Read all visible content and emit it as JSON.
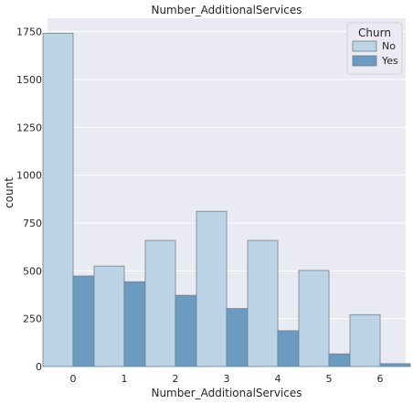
{
  "chart_data": {
    "type": "bar",
    "title": "Number_AdditionalServices",
    "xlabel": "Number_AdditionalServices",
    "ylabel": "count",
    "categories": [
      "0",
      "1",
      "2",
      "3",
      "4",
      "5",
      "6"
    ],
    "ylim": [
      0,
      1820
    ],
    "yticks": [
      0,
      250,
      500,
      750,
      1000,
      1250,
      1500,
      1750
    ],
    "grid": true,
    "legend": {
      "title": "Churn",
      "placement": "top-right"
    },
    "series": [
      {
        "name": "No",
        "color": "#bcd4e6",
        "values": [
          1742,
          525,
          659,
          811,
          659,
          502,
          271
        ]
      },
      {
        "name": "Yes",
        "color": "#6b9bc0",
        "values": [
          473,
          443,
          372,
          303,
          187,
          66,
          15
        ]
      }
    ]
  },
  "colors": {
    "plot_background": "#eaeaf2",
    "gridline": "#ffffff",
    "bar_edge": "#6e7f8c",
    "text": "#262626"
  }
}
